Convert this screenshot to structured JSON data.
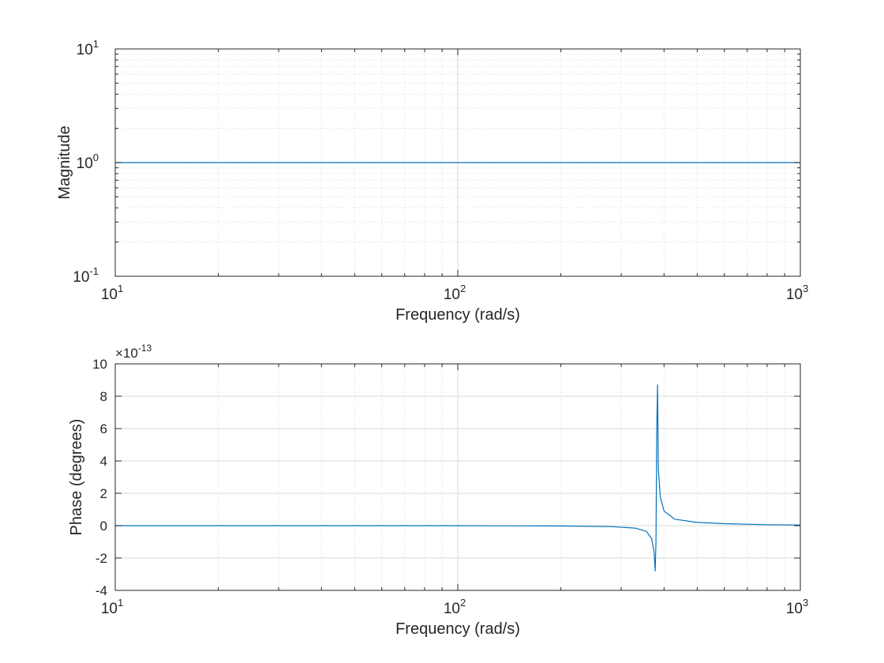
{
  "colors": {
    "line": "#0072BD",
    "axis": "#262626",
    "grid_major": "#d9d9d9",
    "grid_minor": "#e3e3e3",
    "background": "#ffffff"
  },
  "chart_data": [
    {
      "type": "line",
      "xlabel": "Frequency (rad/s)",
      "ylabel": "Magnitude",
      "xscale": "log",
      "yscale": "log",
      "xlim": [
        10,
        1000
      ],
      "ylim": [
        0.1,
        10
      ],
      "x_tick_labels": [
        {
          "base": "10",
          "exp": "1"
        },
        {
          "base": "10",
          "exp": "2"
        },
        {
          "base": "10",
          "exp": "3"
        }
      ],
      "y_tick_labels": [
        {
          "base": "10",
          "exp": "-1"
        },
        {
          "base": "10",
          "exp": "0"
        },
        {
          "base": "10",
          "exp": "1"
        }
      ],
      "grid": true,
      "minor_grid": true,
      "series": [
        {
          "x": [
            10,
            1000
          ],
          "y": [
            1,
            1
          ]
        }
      ]
    },
    {
      "type": "line",
      "xlabel": "Frequency (rad/s)",
      "ylabel": "Phase (degrees)",
      "xscale": "log",
      "yscale": "linear",
      "xlim": [
        10,
        1000
      ],
      "ylim": [
        -4,
        10
      ],
      "y_multiplier": {
        "prefix": "×10",
        "exp": "-13"
      },
      "x_tick_labels": [
        {
          "base": "10",
          "exp": "1"
        },
        {
          "base": "10",
          "exp": "2"
        },
        {
          "base": "10",
          "exp": "3"
        }
      ],
      "y_ticks": [
        -4,
        -2,
        0,
        2,
        4,
        6,
        8,
        10
      ],
      "grid": true,
      "minor_grid": true,
      "series": [
        {
          "x": [
            10,
            30,
            100,
            200,
            280,
            330,
            355,
            368,
            374,
            377,
            379,
            381,
            383,
            385,
            390,
            400,
            430,
            500,
            600,
            800,
            1000
          ],
          "y": [
            0,
            0,
            0,
            -0.02,
            -0.06,
            -0.15,
            -0.35,
            -0.8,
            -1.6,
            -2.8,
            -1.0,
            6.0,
            8.7,
            3.5,
            1.8,
            0.9,
            0.4,
            0.2,
            0.12,
            0.06,
            0.04
          ]
        }
      ]
    }
  ]
}
